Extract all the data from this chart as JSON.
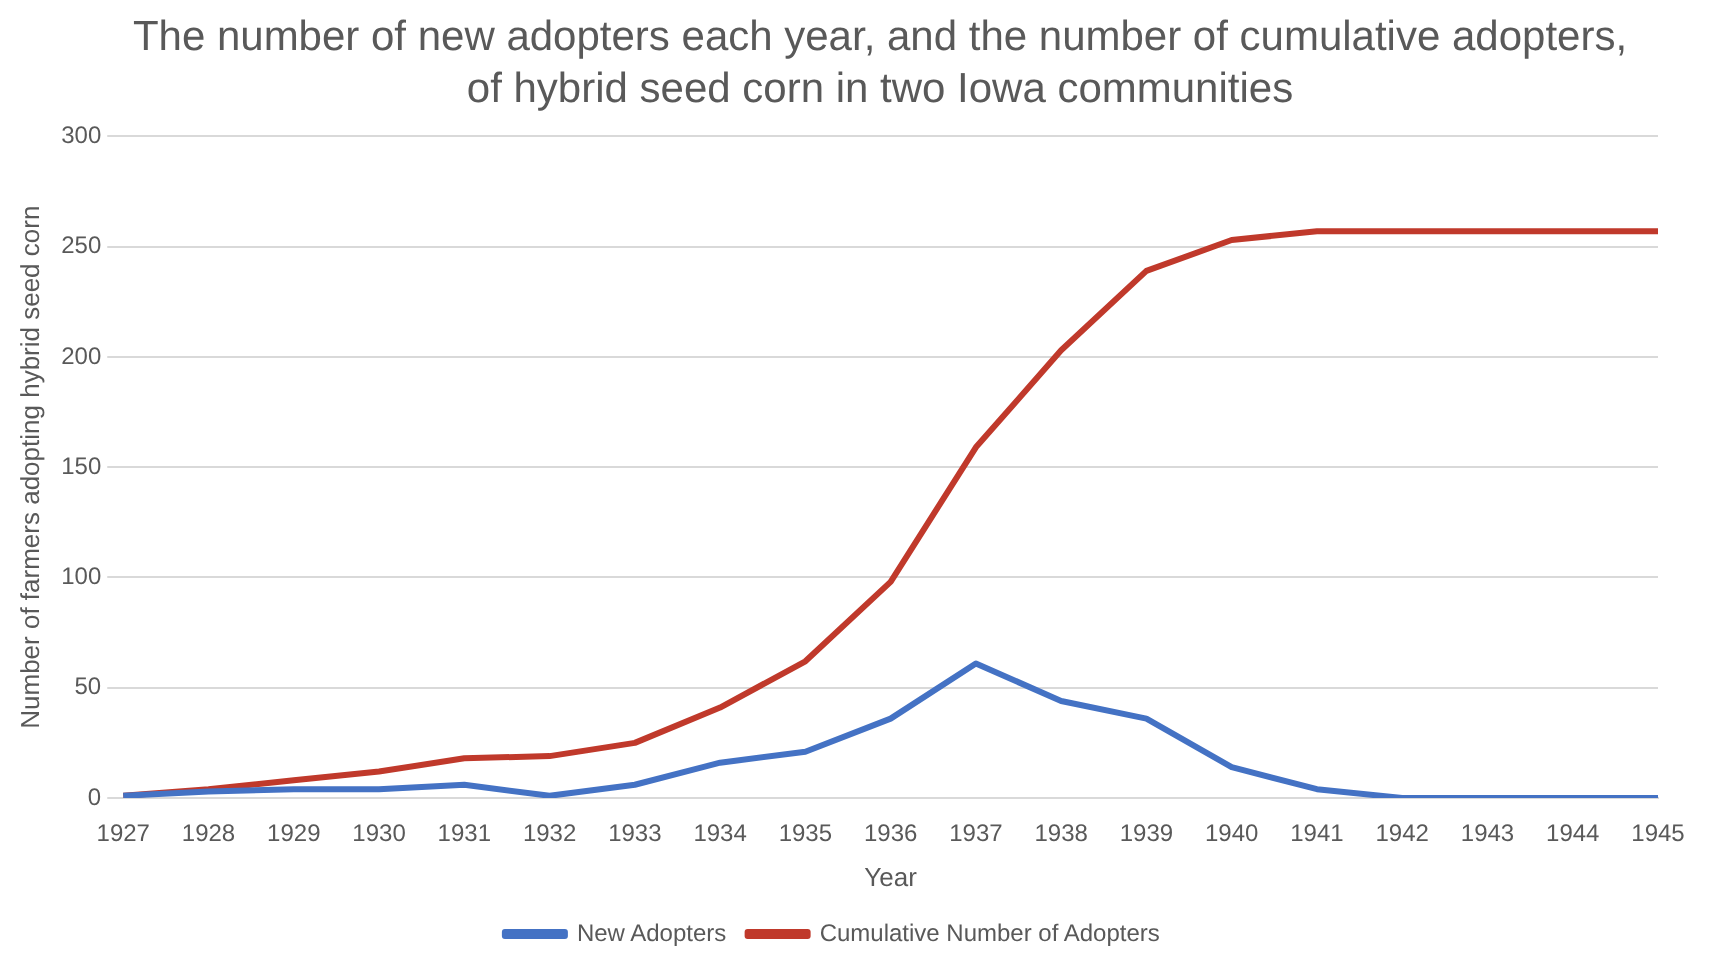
{
  "chart_data": {
    "type": "line",
    "title": "The number of new adopters each year, and the number of cumulative adopters, of hybrid seed corn in two Iowa communities",
    "xlabel": "Year",
    "ylabel": "Number of farmers adopting hybrid seed corn",
    "categories": [
      "1927",
      "1928",
      "1929",
      "1930",
      "1931",
      "1932",
      "1933",
      "1934",
      "1935",
      "1936",
      "1937",
      "1938",
      "1939",
      "1940",
      "1941",
      "1942",
      "1943",
      "1944",
      "1945"
    ],
    "series": [
      {
        "name": "New Adopters",
        "color": "#4472c4",
        "values": [
          1,
          3,
          4,
          4,
          6,
          1,
          6,
          16,
          21,
          36,
          61,
          44,
          36,
          14,
          4,
          0,
          0,
          0,
          0
        ]
      },
      {
        "name": "Cumulative Number of Adopters",
        "color": "#c0392b",
        "values": [
          1,
          4,
          8,
          12,
          18,
          19,
          25,
          41,
          62,
          98,
          159,
          203,
          239,
          253,
          257,
          257,
          257,
          257,
          257
        ]
      }
    ],
    "ylim": [
      0,
      300
    ],
    "yticks": [
      0,
      50,
      100,
      150,
      200,
      250,
      300
    ],
    "grid": "y",
    "legend": "bottom",
    "marker": "none",
    "line_style": "solid"
  }
}
